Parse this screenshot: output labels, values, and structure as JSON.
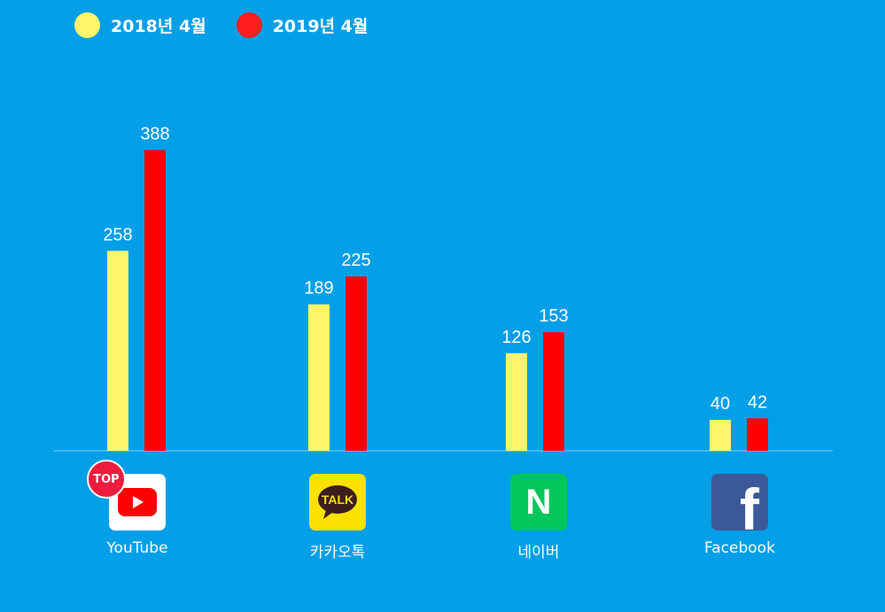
{
  "chart_data": {
    "type": "bar",
    "categories": [
      "YouTube",
      "카카오톡",
      "네이버",
      "Facebook"
    ],
    "series": [
      {
        "name": "2018년 4월",
        "values": [
          258,
          189,
          126,
          40
        ],
        "color": "#fff56b"
      },
      {
        "name": "2019년 4월",
        "values": [
          388,
          225,
          153,
          42
        ],
        "color": "#ff0000"
      }
    ],
    "ylim": [
      0,
      400
    ],
    "grid": false,
    "legend_position": "top-left",
    "badge": {
      "category": "YouTube",
      "text": "TOP"
    }
  },
  "icons": {
    "youtube": {
      "name": "youtube-icon",
      "color": "#ff0000"
    },
    "kakaotalk": {
      "name": "kakaotalk-icon",
      "color": "#fae100",
      "text": "TALK"
    },
    "naver": {
      "name": "naver-icon",
      "color": "#03c75a",
      "text": "N"
    },
    "facebook": {
      "name": "facebook-icon",
      "color": "#3b5998",
      "text": "f"
    }
  }
}
